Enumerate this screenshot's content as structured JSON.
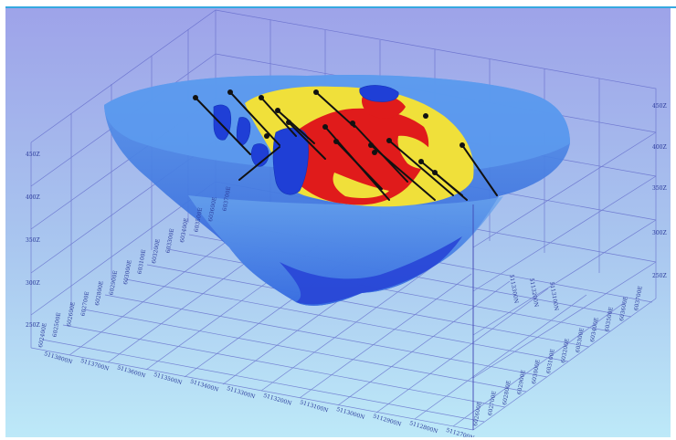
{
  "scene": {
    "description_colors": {
      "background_top": "#9ea3e9",
      "background_bottom": "#b8e6f7",
      "grid_line": "#5f66c8",
      "box_line": "#3b3fb0",
      "pit_shell": "#4a88e6",
      "pit_shell_dark": "#2a55d8",
      "ore_low": "#f2e23a",
      "ore_high": "#e01818",
      "drillhole": "#111111"
    },
    "elevation_labels": [
      "250Z",
      "300Z",
      "350Z",
      "400Z",
      "450Z"
    ],
    "left_face_easting": [
      "602400E",
      "602500E",
      "602600E",
      "602700E",
      "602800E",
      "602900E",
      "603000E",
      "603100E",
      "603200E",
      "603300E",
      "603400E",
      "603500E",
      "603600E",
      "603700E"
    ],
    "front_northing": [
      "5113800N",
      "5113700N",
      "5113600N",
      "5113500N",
      "5113400N",
      "5113300N",
      "5113200N",
      "5113100N",
      "5113000N",
      "5112900N",
      "5112800N",
      "5112700N"
    ],
    "right_face_northing": [
      "5113300N",
      "5113200N",
      "5113100N"
    ],
    "right_face_easting": [
      "602600E",
      "602700E",
      "602800E",
      "602900E",
      "603000E",
      "603100E",
      "603200E",
      "603300E",
      "603400E",
      "603500E",
      "603600E",
      "603700E"
    ]
  }
}
